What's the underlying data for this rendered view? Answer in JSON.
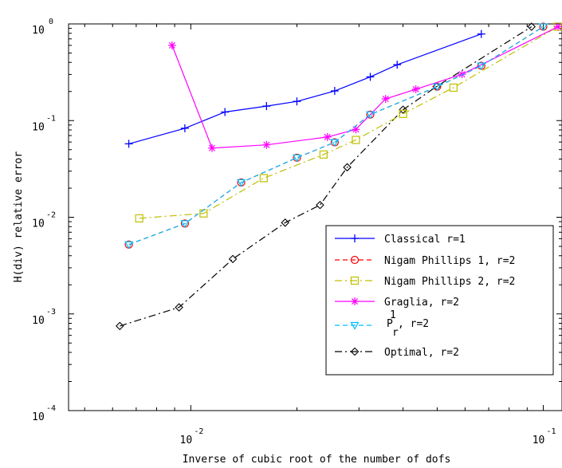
{
  "chart_data": {
    "type": "line",
    "xlabel": "Inverse of cubic root of the number of dofs",
    "ylabel": "H(div) relative error",
    "x_scale": "log",
    "y_scale": "log",
    "xlim": [
      0.0045,
      0.113
    ],
    "ylim": [
      0.0001,
      1.0
    ],
    "x_ticks": [
      {
        "base": "10",
        "exp": "-2",
        "value": 0.01
      },
      {
        "base": "10",
        "exp": "-1",
        "value": 0.1
      }
    ],
    "y_ticks": [
      {
        "base": "10",
        "exp": "0",
        "value": 1
      },
      {
        "base": "10",
        "exp": "-1",
        "value": 0.1
      },
      {
        "base": "10",
        "exp": "-2",
        "value": 0.01
      },
      {
        "base": "10",
        "exp": "-3",
        "value": 0.001
      },
      {
        "base": "10",
        "exp": "-4",
        "value": 0.0001
      }
    ],
    "grid": false,
    "legend_position": "bottom-right",
    "series": [
      {
        "name": "Classical r=1",
        "color": "#0000ff",
        "dash": "solid",
        "marker": "plus",
        "x": [
          0.00667,
          0.00962,
          0.0125,
          0.0164,
          0.02,
          0.0256,
          0.0323,
          0.0385,
          0.0667
        ],
        "y": [
          0.0575,
          0.0833,
          0.1226,
          0.1412,
          0.158,
          0.2026,
          0.2832,
          0.3785,
          0.7867
        ]
      },
      {
        "name": "Nigam Phillips 1, r=2",
        "color": "#ff0000",
        "dash": "dashed",
        "marker": "circle",
        "x": [
          0.00667,
          0.00962,
          0.0139,
          0.02,
          0.0256,
          0.0323,
          0.05,
          0.0667,
          0.1
        ],
        "y": [
          0.00522,
          0.00861,
          0.0229,
          0.0413,
          0.0596,
          0.1154,
          0.2245,
          0.3689,
          0.936
        ]
      },
      {
        "name": "Nigam Phillips 2, r=2",
        "color": "#bfbf00",
        "dash": "dashdot",
        "marker": "square",
        "x": [
          0.00714,
          0.01087,
          0.0161,
          0.0238,
          0.0294,
          0.04,
          0.0556,
          0.1099
        ],
        "y": [
          0.00975,
          0.01096,
          0.0254,
          0.0446,
          0.0631,
          0.1174,
          0.2191,
          0.936
        ]
      },
      {
        "name": "Graglia, r=2",
        "color": "#ff00ff",
        "dash": "solid",
        "marker": "star",
        "x": [
          0.00885,
          0.01149,
          0.0164,
          0.0244,
          0.0294,
          0.0357,
          0.0435,
          0.0588,
          0.1101
        ],
        "y": [
          0.6,
          0.052,
          0.0561,
          0.0676,
          0.0811,
          0.1677,
          0.2112,
          0.3012,
          0.936
        ]
      },
      {
        "name": "P_r^1, r=2",
        "color": "#00bfff",
        "dash": "dashed",
        "marker": "triangle-down",
        "x": [
          0.00667,
          0.00962,
          0.0139,
          0.02,
          0.0256,
          0.0323,
          0.05,
          0.0667,
          0.1
        ],
        "y": [
          0.00522,
          0.00861,
          0.0229,
          0.0413,
          0.0596,
          0.1154,
          0.2245,
          0.3689,
          0.936
        ]
      },
      {
        "name": "Optimal, r=2",
        "color": "#000000",
        "dash": "dashdot",
        "marker": "diamond",
        "x": [
          0.00629,
          0.00926,
          0.01316,
          0.01852,
          0.02326,
          0.02778,
          0.04,
          0.0498,
          0.0926
        ],
        "y": [
          0.00075,
          0.00117,
          0.0037,
          0.00879,
          0.01339,
          0.03288,
          0.1296,
          0.2247,
          0.936
        ]
      }
    ],
    "legend": {
      "entries": [
        {
          "kind": "plain",
          "text": "Classical r=1"
        },
        {
          "kind": "plain",
          "text": "Nigam Phillips 1, r=2"
        },
        {
          "kind": "plain",
          "text": "Nigam Phillips 2, r=2"
        },
        {
          "kind": "plain",
          "text": "Graglia, r=2"
        },
        {
          "kind": "super",
          "base": "P",
          "sup": "1",
          "sub": "r",
          "rest": ", r=2"
        },
        {
          "kind": "plain",
          "text": "Optimal, r=2"
        }
      ]
    }
  }
}
